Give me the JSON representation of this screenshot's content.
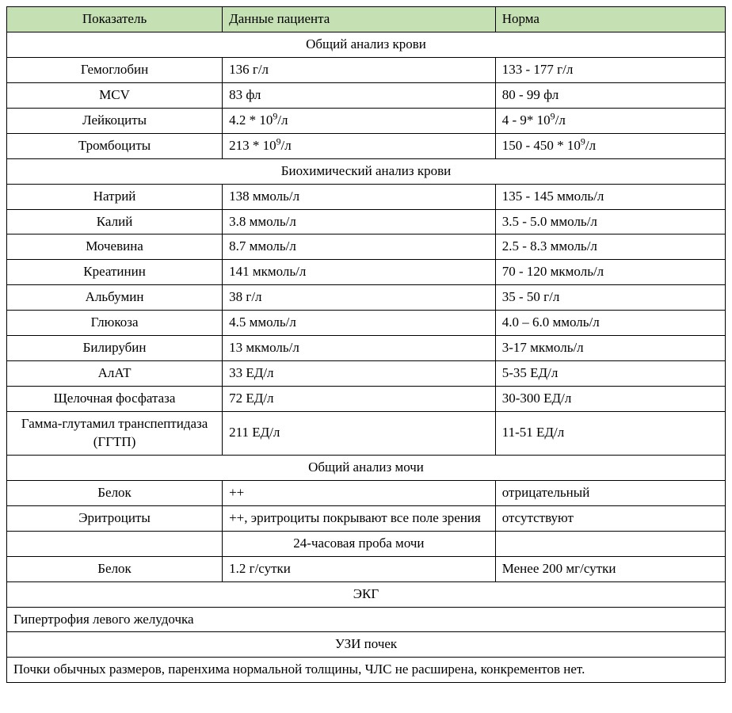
{
  "columns": {
    "param": "Показатель",
    "value": "Данные пациента",
    "norm": "Норма"
  },
  "sections": [
    {
      "title": "Общий  анализ крови",
      "rows": [
        {
          "param": "Гемоглобин",
          "value": "136 г/л",
          "norm": "133 - 177 г/л"
        },
        {
          "param": "MCV",
          "value": "83 фл",
          "norm": "80 - 99 фл"
        },
        {
          "param": "Лейкоциты",
          "value_html": "4.2 * 10<sup>9</sup>/л",
          "norm_html": "4 - 9* 10<sup>9</sup>/л"
        },
        {
          "param": "Тромбоциты",
          "value_html": "213 * 10<sup>9</sup>/л",
          "norm_html": "150 - 450 * 10<sup>9</sup>/л"
        }
      ]
    },
    {
      "title": "Биохимический анализ крови",
      "rows": [
        {
          "param": "Натрий",
          "value": "138 ммоль/л",
          "norm": "135 - 145 ммоль/л"
        },
        {
          "param": "Калий",
          "value": "3.8 ммоль/л",
          "norm": "3.5 - 5.0 ммоль/л"
        },
        {
          "param": "Мочевина",
          "value": "8.7 ммоль/л",
          "norm": "2.5 - 8.3 ммоль/л"
        },
        {
          "param": "Креатинин",
          "value": "141 мкмоль/л",
          "norm": "70 - 120 мкмоль/л"
        },
        {
          "param": "Альбумин",
          "value": "38 г/л",
          "norm": "35 - 50 г/л"
        },
        {
          "param": "Глюкоза",
          "value": "4.5 ммоль/л",
          "norm": "4.0 – 6.0 ммоль/л"
        },
        {
          "param": "Билирубин",
          "value": "13 мкмоль/л",
          "norm": "3-17 мкмоль/л"
        },
        {
          "param": "АлАТ",
          "value": "33 ЕД/л",
          "norm": "5-35 ЕД/л"
        },
        {
          "param": "Щелочная фосфатаза",
          "value": "72 ЕД/л",
          "norm": "30-300 ЕД/л"
        },
        {
          "param": "Гамма-глутамил транспептидаза (ГГТП)",
          "value": "211 ЕД/л",
          "norm": "11-51 ЕД/л"
        }
      ]
    },
    {
      "title": "Общий анализ мочи",
      "rows": [
        {
          "param": "Белок",
          "value": "++",
          "norm": "отрицательный"
        },
        {
          "param": "Эритроциты",
          "value": "++, эритроциты покрывают все поле зрения",
          "norm": "отсутствуют"
        }
      ]
    },
    {
      "title": "24-часовая проба мочи",
      "title_span": "value_only",
      "rows": [
        {
          "param": "Белок",
          "value": "1.2 г/сутки",
          "norm": "Менее 200 мг/сутки"
        }
      ]
    },
    {
      "title": "ЭКГ",
      "narrative": "Гипертрофия левого желудочка"
    },
    {
      "title": "УЗИ почек",
      "narrative": "Почки обычных размеров, паренхима нормальной толщины, ЧЛС не расширена, конкрементов нет."
    }
  ],
  "style": {
    "header_bg": "#c5e0b3",
    "border_color": "#000000",
    "font_family": "Times New Roman",
    "font_size_pt": 13,
    "col_widths": {
      "param": "30%",
      "value": "38%",
      "norm": "32%"
    }
  }
}
